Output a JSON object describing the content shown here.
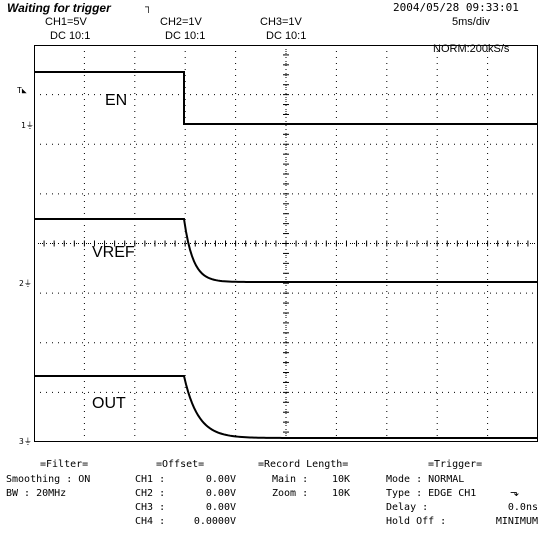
{
  "status": {
    "text": "Waiting for trigger",
    "datetime": "2004/05/28  09:33:01"
  },
  "channels": [
    {
      "scale": "CH1=5V",
      "coupling": "DC  10:1"
    },
    {
      "scale": "CH2=1V",
      "coupling": "DC  10:1"
    },
    {
      "scale": "CH3=1V",
      "coupling": "DC  10:1"
    }
  ],
  "timebase": "5ms/div",
  "acquisition": "NORM:200kS/s",
  "markers": {
    "trigger_level": "T",
    "ch1": "1",
    "ch2": "2",
    "ch3": "3"
  },
  "waveform_labels": {
    "en": "EN",
    "vref": "VREF",
    "out": "OUT"
  },
  "filter": {
    "heading": "=Filter=",
    "smoothing_label": "Smoothing : ON",
    "bw_label": "BW : 20MHz"
  },
  "offset": {
    "heading": "=Offset=",
    "rows": [
      {
        "name": "CH1 :",
        "value": "0.00V"
      },
      {
        "name": "CH2 :",
        "value": "0.00V"
      },
      {
        "name": "CH3 :",
        "value": "0.00V"
      },
      {
        "name": "CH4 :",
        "value": "0.0000V"
      }
    ]
  },
  "record_length": {
    "heading": "=Record Length=",
    "rows": [
      {
        "name": "Main :",
        "value": "10K"
      },
      {
        "name": "Zoom :",
        "value": "10K"
      }
    ]
  },
  "trigger": {
    "heading": "=Trigger=",
    "mode": "Mode : NORMAL",
    "type": "Type : EDGE CH1",
    "delay_name": "Delay :",
    "delay_value": "0.0ns",
    "holdoff_name": "Hold Off :",
    "holdoff_value": "MINIMUM"
  },
  "colors": {
    "background": "#ffffff",
    "trace": "#000000",
    "grid": "#000000"
  }
}
